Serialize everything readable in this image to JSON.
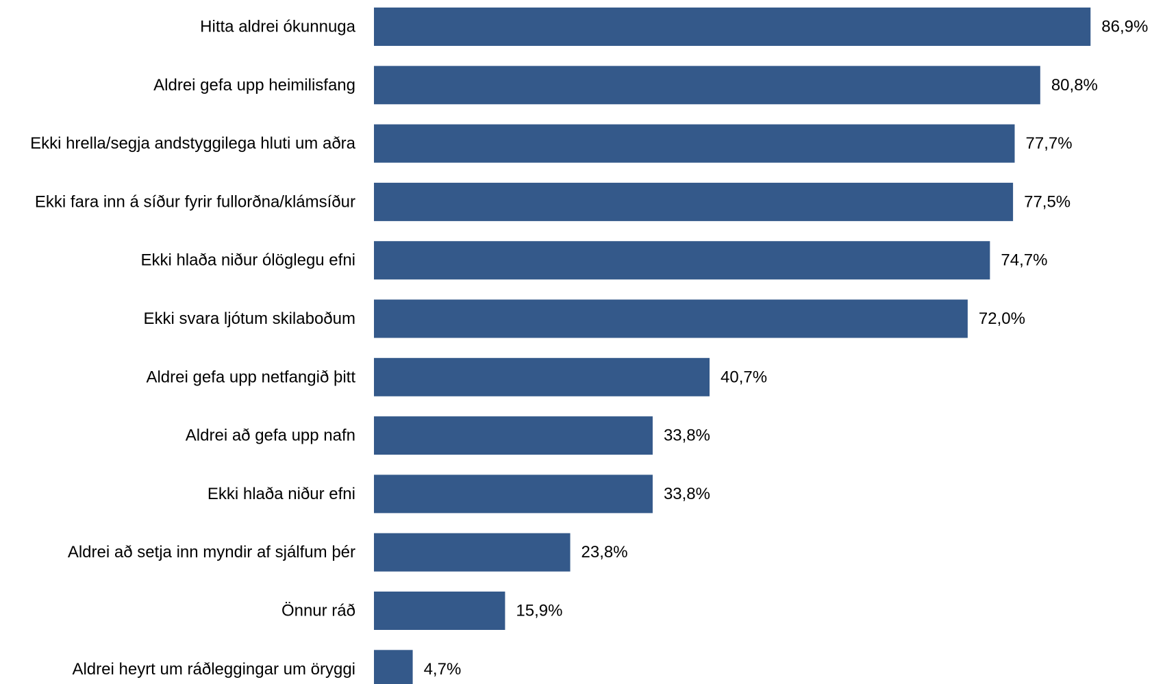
{
  "chart_data": {
    "type": "bar",
    "orientation": "horizontal",
    "title": "",
    "xlabel": "",
    "ylabel": "",
    "xlim": [
      0,
      100
    ],
    "grid": false,
    "legend": "none",
    "bar_color": "#34598A",
    "categories": [
      "Hitta aldrei ókunnuga",
      "Aldrei gefa upp heimilisfang",
      "Ekki hrella/segja andstyggilega hluti um aðra",
      "Ekki fara inn á síður fyrir fullorðna/klámsíður",
      "Ekki hlaða niður ólöglegu efni",
      "Ekki svara ljótum skilaboðum",
      "Aldrei gefa upp netfangið þitt",
      "Aldrei að gefa upp nafn",
      "Ekki hlaða niður efni",
      "Aldrei að setja inn myndir af sjálfum þér",
      "Önnur ráð",
      "Aldrei heyrt um ráðleggingar um öryggi"
    ],
    "values": [
      86.9,
      80.8,
      77.7,
      77.5,
      74.7,
      72.0,
      40.7,
      33.8,
      33.8,
      23.8,
      15.9,
      4.7
    ],
    "value_labels": [
      "86,9%",
      "80,8%",
      "77,7%",
      "77,5%",
      "74,7%",
      "72,0%",
      "40,7%",
      "33,8%",
      "33,8%",
      "23,8%",
      "15,9%",
      "4,7%"
    ]
  }
}
